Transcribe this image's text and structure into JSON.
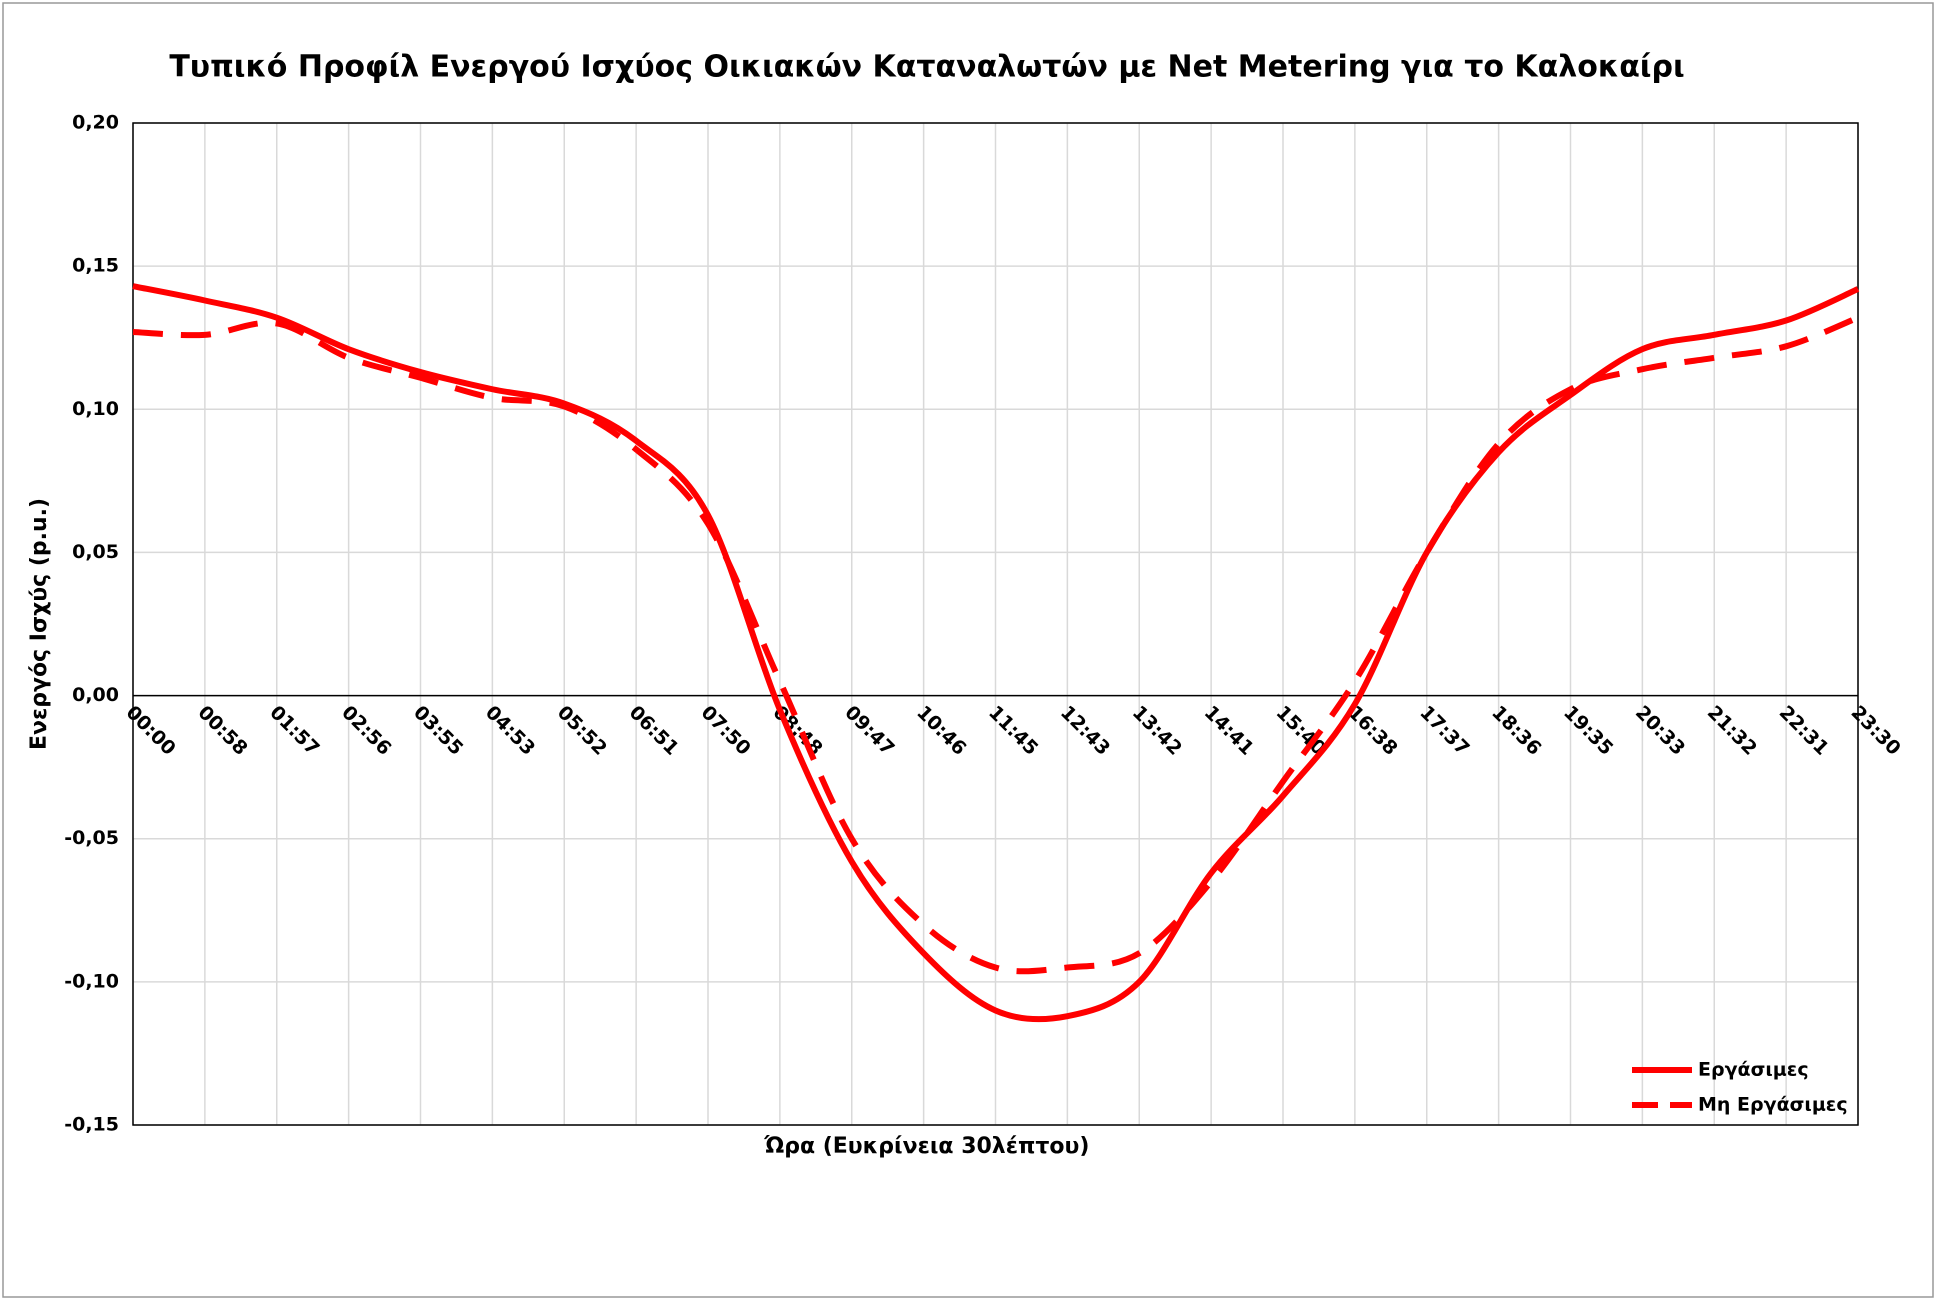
{
  "chart_data": {
    "type": "line",
    "title": "Τυπικό Προφίλ Ενεργού Ισχύος Οικιακών Καταναλωτών με Net Metering για το Καλοκαίρι",
    "x_label": "Ώρα (Ευκρίνεια 30λέπτου)",
    "y_label": "Ενεργός Ισχύς (p.u.)",
    "categories": [
      "00:00",
      "00:58",
      "01:57",
      "02:56",
      "03:55",
      "04:53",
      "05:52",
      "06:51",
      "07:50",
      "08:48",
      "09:47",
      "10:46",
      "11:45",
      "12:43",
      "13:42",
      "14:41",
      "15:40",
      "16:38",
      "17:37",
      "18:36",
      "19:35",
      "20:33",
      "21:32",
      "22:31",
      "23:30"
    ],
    "series": [
      {
        "name": "Εργάσιμες",
        "color": "#ff0000",
        "dash": false,
        "values": [
          0.143,
          0.138,
          0.132,
          0.121,
          0.113,
          0.107,
          0.102,
          0.089,
          0.063,
          -0.005,
          -0.058,
          -0.09,
          -0.11,
          -0.112,
          -0.1,
          -0.062,
          -0.035,
          -0.003,
          0.05,
          0.085,
          0.105,
          0.121,
          0.126,
          0.131,
          0.142
        ]
      },
      {
        "name": "Μη Εργάσιμες",
        "color": "#ff0000",
        "dash": true,
        "values": [
          0.127,
          0.126,
          0.13,
          0.118,
          0.111,
          0.104,
          0.101,
          0.086,
          0.06,
          0.005,
          -0.05,
          -0.08,
          -0.095,
          -0.095,
          -0.09,
          -0.065,
          -0.03,
          0.005,
          0.05,
          0.088,
          0.107,
          0.114,
          0.118,
          0.122,
          0.132
        ]
      }
    ],
    "ylim": [
      -0.15,
      0.2
    ],
    "yticks": [
      {
        "value": -0.15,
        "label": "-0,15"
      },
      {
        "value": -0.1,
        "label": "-0,10"
      },
      {
        "value": -0.05,
        "label": "-0,05"
      },
      {
        "value": 0,
        "label": "0,00"
      },
      {
        "value": 0.05,
        "label": "0,05"
      },
      {
        "value": 0.1,
        "label": "0,10"
      },
      {
        "value": 0.15,
        "label": "0,15"
      },
      {
        "value": 0.2,
        "label": "0,20"
      }
    ],
    "grid": true,
    "legend": "lower right"
  }
}
